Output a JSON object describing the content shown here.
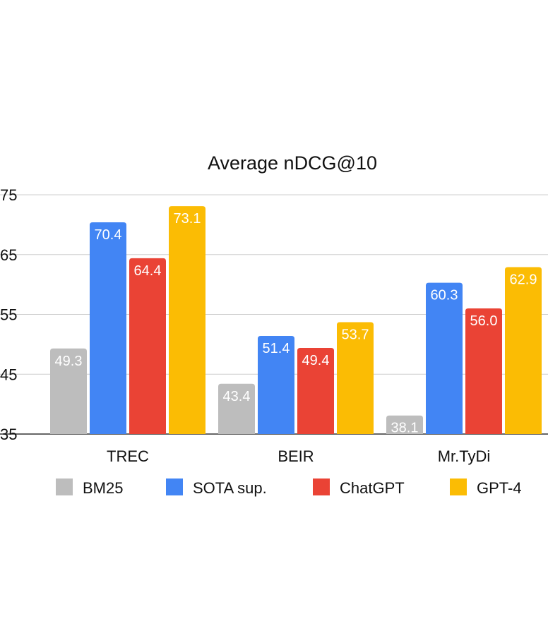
{
  "chart_data": {
    "type": "bar",
    "title": "Average nDCG@10",
    "categories": [
      "TREC",
      "BEIR",
      "Mr.TyDi"
    ],
    "series": [
      {
        "name": "BM25",
        "color": "#bdbdbd",
        "values": [
          49.3,
          43.4,
          38.1
        ]
      },
      {
        "name": "SOTA sup.",
        "color": "#4285f4",
        "values": [
          70.4,
          51.4,
          60.3
        ]
      },
      {
        "name": "ChatGPT",
        "color": "#ea4335",
        "values": [
          64.4,
          49.4,
          56.0
        ]
      },
      {
        "name": "GPT-4",
        "color": "#fbbc04",
        "values": [
          73.1,
          53.7,
          62.9
        ]
      }
    ],
    "ylim": [
      35,
      75
    ],
    "yticks": [
      35,
      45,
      55,
      65,
      75
    ],
    "grid": true,
    "legend": "bottom",
    "data_labels": true
  }
}
